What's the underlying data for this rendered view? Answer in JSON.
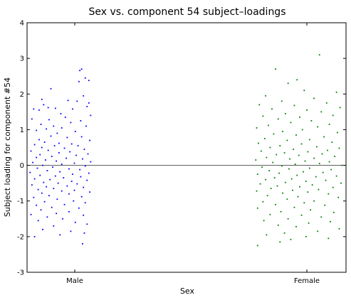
{
  "chart_data": {
    "type": "scatter",
    "title": "Sex vs. component 54 subject–loadings",
    "xlabel": "Sex",
    "ylabel": "Subject loading for component #54",
    "categories": [
      "Male",
      "Female"
    ],
    "ylim": [
      -3,
      4
    ],
    "yticks": [
      -3,
      -2,
      -1,
      0,
      1,
      2,
      3,
      4
    ],
    "reference_line": 0,
    "grid": false,
    "series": [
      {
        "category": "Male",
        "color": "#0000ff",
        "points": [
          [
            0.58,
            2.7
          ],
          [
            0.56,
            2.66
          ],
          [
            0.62,
            2.45
          ],
          [
            0.66,
            2.38
          ],
          [
            0.55,
            2.35
          ],
          [
            0.24,
            2.15
          ],
          [
            0.6,
            1.95
          ],
          [
            0.14,
            1.85
          ],
          [
            0.53,
            1.8
          ],
          [
            0.43,
            1.82
          ],
          [
            0.66,
            1.75
          ],
          [
            0.16,
            1.7
          ],
          [
            0.64,
            1.65
          ],
          [
            0.05,
            1.58
          ],
          [
            0.21,
            1.62
          ],
          [
            0.11,
            1.55
          ],
          [
            0.29,
            1.6
          ],
          [
            0.48,
            1.58
          ],
          [
            0.68,
            1.4
          ],
          [
            0.35,
            1.45
          ],
          [
            0.22,
            1.28
          ],
          [
            0.4,
            1.35
          ],
          [
            0.03,
            1.3
          ],
          [
            0.57,
            1.25
          ],
          [
            0.46,
            1.2
          ],
          [
            0.27,
            1.1
          ],
          [
            0.13,
            1.15
          ],
          [
            0.63,
            1.1
          ],
          [
            0.19,
            1.02
          ],
          [
            0.36,
            1.05
          ],
          [
            0.08,
            0.98
          ],
          [
            0.51,
            0.95
          ],
          [
            0.31,
            0.9
          ],
          [
            0.24,
            0.82
          ],
          [
            0.42,
            0.78
          ],
          [
            0.58,
            0.8
          ],
          [
            0.11,
            0.72
          ],
          [
            0.67,
            0.7
          ],
          [
            0.17,
            0.65
          ],
          [
            0.33,
            0.62
          ],
          [
            0.47,
            0.6
          ],
          [
            0.06,
            0.58
          ],
          [
            0.28,
            0.55
          ],
          [
            0.54,
            0.55
          ],
          [
            0.14,
            0.5
          ],
          [
            0.39,
            0.48
          ],
          [
            0.61,
            0.45
          ],
          [
            0.21,
            0.42
          ],
          [
            0.02,
            0.4
          ],
          [
            0.45,
            0.38
          ],
          [
            0.33,
            0.35
          ],
          [
            0.65,
            0.32
          ],
          [
            0.12,
            0.3
          ],
          [
            0.52,
            0.28
          ],
          [
            0.25,
            0.25
          ],
          [
            0.08,
            0.22
          ],
          [
            0.41,
            0.2
          ],
          [
            0.59,
            0.18
          ],
          [
            0.18,
            0.15
          ],
          [
            0.3,
            0.12
          ],
          [
            0.68,
            0.1
          ],
          [
            0.04,
            0.08
          ],
          [
            0.5,
            0.06
          ],
          [
            0.36,
            0.03
          ],
          [
            0.15,
            0.0
          ],
          [
            0.62,
            -0.02
          ],
          [
            0.26,
            -0.05
          ],
          [
            0.09,
            -0.08
          ],
          [
            0.44,
            -0.1
          ],
          [
            0.56,
            -0.12
          ],
          [
            0.2,
            -0.15
          ],
          [
            0.34,
            -0.18
          ],
          [
            0.01,
            -0.2
          ],
          [
            0.66,
            -0.22
          ],
          [
            0.48,
            -0.25
          ],
          [
            0.12,
            -0.28
          ],
          [
            0.29,
            -0.3
          ],
          [
            0.57,
            -0.32
          ],
          [
            0.38,
            -0.35
          ],
          [
            0.06,
            -0.38
          ],
          [
            0.23,
            -0.4
          ],
          [
            0.64,
            -0.42
          ],
          [
            0.47,
            -0.45
          ],
          [
            0.16,
            -0.48
          ],
          [
            0.32,
            -0.5
          ],
          [
            0.53,
            -0.52
          ],
          [
            0.03,
            -0.55
          ],
          [
            0.42,
            -0.58
          ],
          [
            0.19,
            -0.6
          ],
          [
            0.6,
            -0.62
          ],
          [
            0.27,
            -0.65
          ],
          [
            0.1,
            -0.68
          ],
          [
            0.5,
            -0.7
          ],
          [
            0.36,
            -0.72
          ],
          [
            0.67,
            -0.75
          ],
          [
            0.14,
            -0.78
          ],
          [
            0.44,
            -0.8
          ],
          [
            0.22,
            -0.85
          ],
          [
            0.58,
            -0.88
          ],
          [
            0.05,
            -0.9
          ],
          [
            0.31,
            -0.95
          ],
          [
            0.49,
            -1.0
          ],
          [
            0.17,
            -1.02
          ],
          [
            0.62,
            -1.05
          ],
          [
            0.39,
            -1.1
          ],
          [
            0.08,
            -1.12
          ],
          [
            0.25,
            -1.18
          ],
          [
            0.55,
            -1.2
          ],
          [
            0.13,
            -1.25
          ],
          [
            0.44,
            -1.3
          ],
          [
            0.3,
            -1.35
          ],
          [
            0.02,
            -1.38
          ],
          [
            0.6,
            -1.4
          ],
          [
            0.2,
            -1.45
          ],
          [
            0.37,
            -1.5
          ],
          [
            0.1,
            -1.55
          ],
          [
            0.51,
            -1.6
          ],
          [
            0.64,
            -1.65
          ],
          [
            0.27,
            -1.7
          ],
          [
            0.15,
            -1.8
          ],
          [
            0.46,
            -1.85
          ],
          [
            0.61,
            -1.9
          ],
          [
            0.34,
            -1.95
          ],
          [
            0.06,
            -2.0
          ],
          [
            0.59,
            -2.2
          ]
        ]
      },
      {
        "category": "Female",
        "color": "#008000",
        "points": [
          [
            0.72,
            3.1
          ],
          [
            0.23,
            2.7
          ],
          [
            0.47,
            2.4
          ],
          [
            0.37,
            2.3
          ],
          [
            0.55,
            2.1
          ],
          [
            0.91,
            2.05
          ],
          [
            0.12,
            1.95
          ],
          [
            0.66,
            1.88
          ],
          [
            0.3,
            1.8
          ],
          [
            0.8,
            1.75
          ],
          [
            0.05,
            1.7
          ],
          [
            0.44,
            1.68
          ],
          [
            0.95,
            1.62
          ],
          [
            0.19,
            1.58
          ],
          [
            0.58,
            1.55
          ],
          [
            0.74,
            1.5
          ],
          [
            0.34,
            1.45
          ],
          [
            0.87,
            1.4
          ],
          [
            0.09,
            1.38
          ],
          [
            0.5,
            1.35
          ],
          [
            0.26,
            1.3
          ],
          [
            0.63,
            1.25
          ],
          [
            0.4,
            1.2
          ],
          [
            0.83,
            1.15
          ],
          [
            0.15,
            1.12
          ],
          [
            0.7,
            1.08
          ],
          [
            0.02,
            1.05
          ],
          [
            0.53,
            1.0
          ],
          [
            0.31,
            0.95
          ],
          [
            0.92,
            0.92
          ],
          [
            0.21,
            0.88
          ],
          [
            0.46,
            0.85
          ],
          [
            0.77,
            0.8
          ],
          [
            0.11,
            0.75
          ],
          [
            0.61,
            0.72
          ],
          [
            0.36,
            0.7
          ],
          [
            0.86,
            0.65
          ],
          [
            0.04,
            0.62
          ],
          [
            0.52,
            0.6
          ],
          [
            0.28,
            0.55
          ],
          [
            0.69,
            0.52
          ],
          [
            0.17,
            0.5
          ],
          [
            0.94,
            0.48
          ],
          [
            0.43,
            0.45
          ],
          [
            0.81,
            0.42
          ],
          [
            0.07,
            0.4
          ],
          [
            0.59,
            0.38
          ],
          [
            0.33,
            0.35
          ],
          [
            0.75,
            0.32
          ],
          [
            0.24,
            0.3
          ],
          [
            0.49,
            0.28
          ],
          [
            0.89,
            0.25
          ],
          [
            0.13,
            0.22
          ],
          [
            0.66,
            0.2
          ],
          [
            0.39,
            0.18
          ],
          [
            0.01,
            0.15
          ],
          [
            0.56,
            0.12
          ],
          [
            0.83,
            0.1
          ],
          [
            0.2,
            0.08
          ],
          [
            0.72,
            0.05
          ],
          [
            0.45,
            0.03
          ],
          [
            0.97,
            0.0
          ],
          [
            0.3,
            -0.02
          ],
          [
            0.08,
            -0.05
          ],
          [
            0.61,
            -0.08
          ],
          [
            0.38,
            -0.1
          ],
          [
            0.85,
            -0.12
          ],
          [
            0.16,
            -0.15
          ],
          [
            0.54,
            -0.18
          ],
          [
            0.76,
            -0.2
          ],
          [
            0.27,
            -0.22
          ],
          [
            0.03,
            -0.25
          ],
          [
            0.47,
            -0.28
          ],
          [
            0.91,
            -0.3
          ],
          [
            0.68,
            -0.32
          ],
          [
            0.22,
            -0.35
          ],
          [
            0.41,
            -0.38
          ],
          [
            0.12,
            -0.4
          ],
          [
            0.79,
            -0.42
          ],
          [
            0.57,
            -0.45
          ],
          [
            0.34,
            -0.48
          ],
          [
            0.96,
            -0.5
          ],
          [
            0.06,
            -0.52
          ],
          [
            0.64,
            -0.55
          ],
          [
            0.25,
            -0.58
          ],
          [
            0.5,
            -0.6
          ],
          [
            0.87,
            -0.62
          ],
          [
            0.18,
            -0.65
          ],
          [
            0.71,
            -0.68
          ],
          [
            0.42,
            -0.7
          ],
          [
            0.02,
            -0.72
          ],
          [
            0.59,
            -0.75
          ],
          [
            0.31,
            -0.78
          ],
          [
            0.82,
            -0.8
          ],
          [
            0.14,
            -0.85
          ],
          [
            0.48,
            -0.88
          ],
          [
            0.93,
            -0.9
          ],
          [
            0.36,
            -0.95
          ],
          [
            0.66,
            -1.0
          ],
          [
            0.09,
            -1.02
          ],
          [
            0.55,
            -1.05
          ],
          [
            0.23,
            -1.1
          ],
          [
            0.78,
            -1.12
          ],
          [
            0.44,
            -1.18
          ],
          [
            0.03,
            -1.2
          ],
          [
            0.62,
            -1.25
          ],
          [
            0.29,
            -1.3
          ],
          [
            0.88,
            -1.32
          ],
          [
            0.17,
            -1.38
          ],
          [
            0.52,
            -1.4
          ],
          [
            0.74,
            -1.45
          ],
          [
            0.37,
            -1.5
          ],
          [
            0.1,
            -1.55
          ],
          [
            0.84,
            -1.58
          ],
          [
            0.6,
            -1.62
          ],
          [
            0.26,
            -1.68
          ],
          [
            0.46,
            -1.72
          ],
          [
            0.94,
            -1.78
          ],
          [
            0.7,
            -1.85
          ],
          [
            0.33,
            -1.9
          ],
          [
            0.13,
            -1.95
          ],
          [
            0.57,
            -2.0
          ],
          [
            0.4,
            -2.08
          ],
          [
            0.82,
            -2.05
          ],
          [
            0.28,
            -2.15
          ],
          [
            0.03,
            -2.25
          ]
        ]
      }
    ]
  }
}
